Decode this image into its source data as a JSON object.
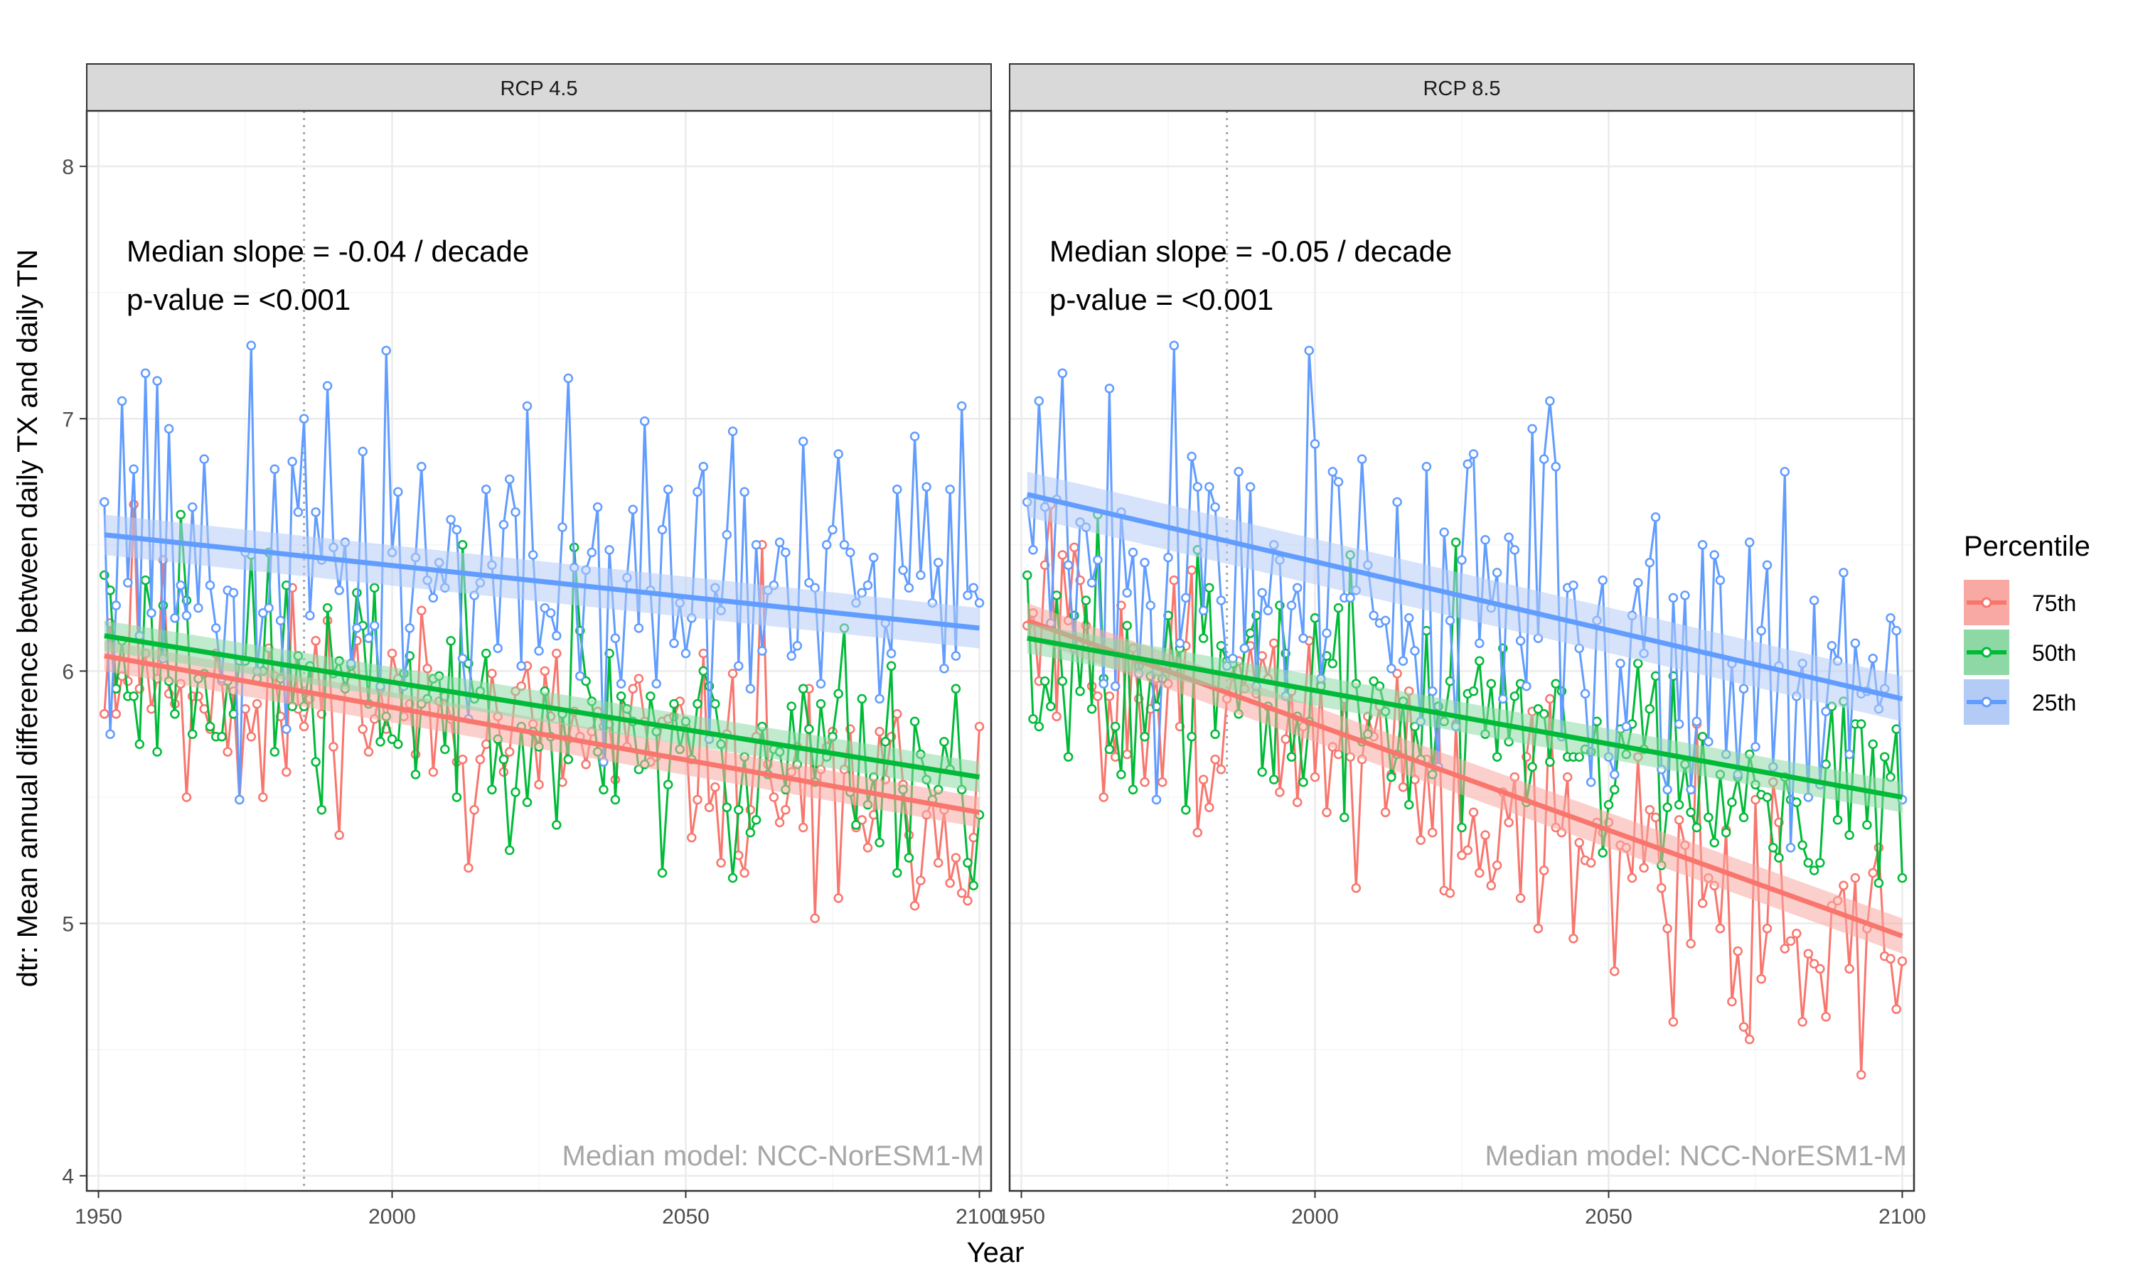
{
  "colors": {
    "p75": "#F8766D",
    "p50": "#00BA38",
    "p25": "#619CFF",
    "band75": "#F8A9A3",
    "band50": "#8ED8A6",
    "band25": "#B4CCF5",
    "strip_bg": "#D9D9D9",
    "grid_major": "#EBEBEB",
    "grid_minor": "#F5F5F5",
    "reference_line": "#A6A6A6"
  },
  "axes": {
    "xlabel": "Year",
    "ylabel": "dtr: Mean annual difference between daily TX and daily TN",
    "x_ticks": [
      "1950",
      "2000",
      "2050",
      "2100"
    ],
    "y_ticks": [
      "4",
      "5",
      "6",
      "7",
      "8"
    ]
  },
  "legend": {
    "title": "Percentile",
    "items": [
      "75th",
      "50th",
      "25th"
    ]
  },
  "chart_data": [
    {
      "type": "line",
      "panel": "RCP 4.5",
      "annotation_slope": "Median slope = -0.04 / decade",
      "annotation_p": "p-value = <0.001",
      "model_note": "Median model: NCC-NorESM1-M",
      "xlabel": "Year",
      "ylabel": "dtr: Mean annual difference between daily TX and daily TN",
      "xlim": [
        1948,
        2102
      ],
      "ylim": [
        3.94,
        8.22
      ],
      "reference_year": 1985,
      "grid": true,
      "legend_position": "right",
      "x": [
        1951,
        2100
      ],
      "series": [
        {
          "name": "75th",
          "start": 6.08,
          "end": 5.42,
          "amplitude": 0.2,
          "seed": 11,
          "fit": [
            6.06,
            5.44
          ],
          "band": 0.06,
          "anchors": [
            [
              1952,
              6.19
            ],
            [
              1956,
              6.66
            ],
            [
              1965,
              5.5
            ],
            [
              1974,
              5.49
            ],
            [
              1978,
              5.5
            ],
            [
              1982,
              5.6
            ],
            [
              2013,
              5.22
            ],
            [
              2060,
              5.2
            ],
            [
              2063,
              6.5
            ],
            [
              2072,
              5.02
            ],
            [
              2076,
              5.1
            ],
            [
              2100,
              5.78
            ]
          ]
        },
        {
          "name": "50th",
          "start": 6.08,
          "end": 5.6,
          "amplitude": 0.22,
          "seed": 23,
          "fit": [
            6.14,
            5.58
          ],
          "band": 0.06,
          "anchors": [
            [
              1951,
              6.38
            ],
            [
              1964,
              6.62
            ],
            [
              1979,
              6.47
            ],
            [
              1988,
              5.45
            ],
            [
              2031,
              6.49
            ],
            [
              2046,
              5.2
            ],
            [
              2058,
              5.18
            ],
            [
              2077,
              6.17
            ],
            [
              2086,
              5.2
            ],
            [
              2098,
              5.24
            ],
            [
              2100,
              5.43
            ]
          ]
        },
        {
          "name": "25th",
          "start": 6.48,
          "end": 6.22,
          "amplitude": 0.32,
          "seed": 37,
          "fit": [
            6.54,
            6.17
          ],
          "band": 0.08,
          "anchors": [
            [
              1951,
              6.67
            ],
            [
              1954,
              7.07
            ],
            [
              1958,
              7.18
            ],
            [
              1960,
              7.15
            ],
            [
              1976,
              7.29
            ],
            [
              1974,
              5.49
            ],
            [
              1999,
              7.27
            ],
            [
              2030,
              7.16
            ],
            [
              2058,
              6.95
            ],
            [
              2089,
              6.93
            ],
            [
              2097,
              7.05
            ],
            [
              2100,
              6.27
            ]
          ]
        }
      ]
    },
    {
      "type": "line",
      "panel": "RCP 8.5",
      "annotation_slope": "Median slope = -0.05 / decade",
      "annotation_p": "p-value = <0.001",
      "model_note": "Median model: NCC-NorESM1-M",
      "xlabel": "Year",
      "ylabel": "dtr: Mean annual difference between daily TX and daily TN",
      "xlim": [
        1948,
        2102
      ],
      "ylim": [
        3.94,
        8.22
      ],
      "reference_year": 1985,
      "grid": true,
      "legend_position": "right",
      "x": [
        1951,
        2100
      ],
      "series": [
        {
          "name": "75th",
          "start": 6.15,
          "end": 4.9,
          "amplitude": 0.24,
          "seed": 51,
          "fit": [
            6.2,
            4.95
          ],
          "band": 0.07,
          "anchors": [
            [
              1951,
              6.18
            ],
            [
              1955,
              6.66
            ],
            [
              1964,
              5.5
            ],
            [
              2007,
              5.14
            ],
            [
              2023,
              5.12
            ],
            [
              2044,
              4.94
            ],
            [
              2073,
              4.59
            ],
            [
              2083,
              4.61
            ],
            [
              2087,
              4.63
            ],
            [
              2099,
              4.66
            ],
            [
              2100,
              4.85
            ]
          ]
        },
        {
          "name": "50th",
          "start": 6.08,
          "end": 5.5,
          "amplitude": 0.22,
          "seed": 67,
          "fit": [
            6.13,
            5.5
          ],
          "band": 0.06,
          "anchors": [
            [
              1951,
              6.38
            ],
            [
              1963,
              6.62
            ],
            [
              1978,
              5.45
            ],
            [
              2024,
              6.51
            ],
            [
              2096,
              5.16
            ],
            [
              2100,
              5.18
            ]
          ]
        },
        {
          "name": "25th",
          "start": 6.6,
          "end": 5.95,
          "amplitude": 0.33,
          "seed": 79,
          "fit": [
            6.7,
            5.89
          ],
          "band": 0.09,
          "anchors": [
            [
              1951,
              6.67
            ],
            [
              1953,
              7.07
            ],
            [
              1957,
              7.18
            ],
            [
              1976,
              7.29
            ],
            [
              1973,
              5.49
            ],
            [
              1999,
              7.27
            ],
            [
              2040,
              7.07
            ],
            [
              2080,
              6.79
            ],
            [
              2099,
              6.16
            ],
            [
              2100,
              5.49
            ]
          ]
        }
      ]
    }
  ]
}
